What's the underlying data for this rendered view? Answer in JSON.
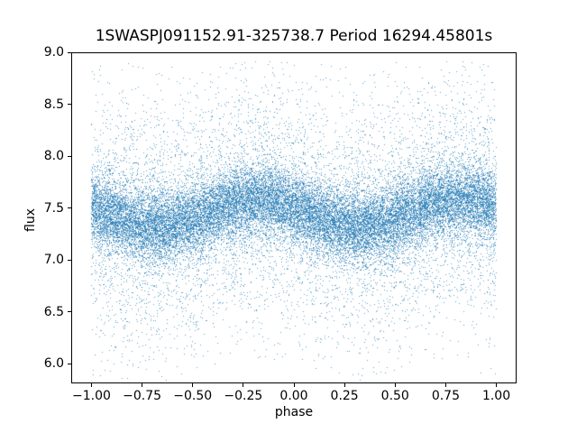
{
  "chart_data": {
    "type": "scatter",
    "title": "1SWASPJ091152.91-325738.7 Period 16294.45801s",
    "xlabel": "phase",
    "ylabel": "flux",
    "xlim": [
      -1.1,
      1.1
    ],
    "ylim": [
      5.809,
      9.0
    ],
    "x_tick_values": [
      -1.0,
      -0.75,
      -0.5,
      -0.25,
      0.0,
      0.25,
      0.5,
      0.75,
      1.0
    ],
    "x_tick_labels": [
      "−1.00",
      "−0.75",
      "−0.50",
      "−0.25",
      "0.00",
      "0.25",
      "0.50",
      "0.75",
      "1.00"
    ],
    "y_tick_values": [
      6.0,
      6.5,
      7.0,
      7.5,
      8.0,
      8.5,
      9.0
    ],
    "y_tick_labels": [
      "6.0",
      "6.5",
      "7.0",
      "7.5",
      "8.0",
      "8.5",
      "9.0"
    ],
    "grid": false,
    "legend": null,
    "marker_color": "#1f77b4",
    "marker_size_px": 1,
    "scatter_model": {
      "description": "phase-folded light curve; dense sinusoidal band of ~30000 tiny points with heavy-tailed vertical scatter",
      "n_points": 30000,
      "x_range": [
        -1.0,
        1.0
      ],
      "flux_mean": 7.45,
      "sine_amplitude": 0.13,
      "sine_phase_offset": 0.43,
      "sine_peak_phase": -0.18,
      "sine_trough_phase": 0.32,
      "core_sigma": 0.17,
      "core_fraction": 0.72,
      "tail_sigma": 0.6,
      "flux_clip_min": 5.83,
      "flux_clip_max": 8.92,
      "marker_alpha": 0.7,
      "seed": 42
    }
  }
}
